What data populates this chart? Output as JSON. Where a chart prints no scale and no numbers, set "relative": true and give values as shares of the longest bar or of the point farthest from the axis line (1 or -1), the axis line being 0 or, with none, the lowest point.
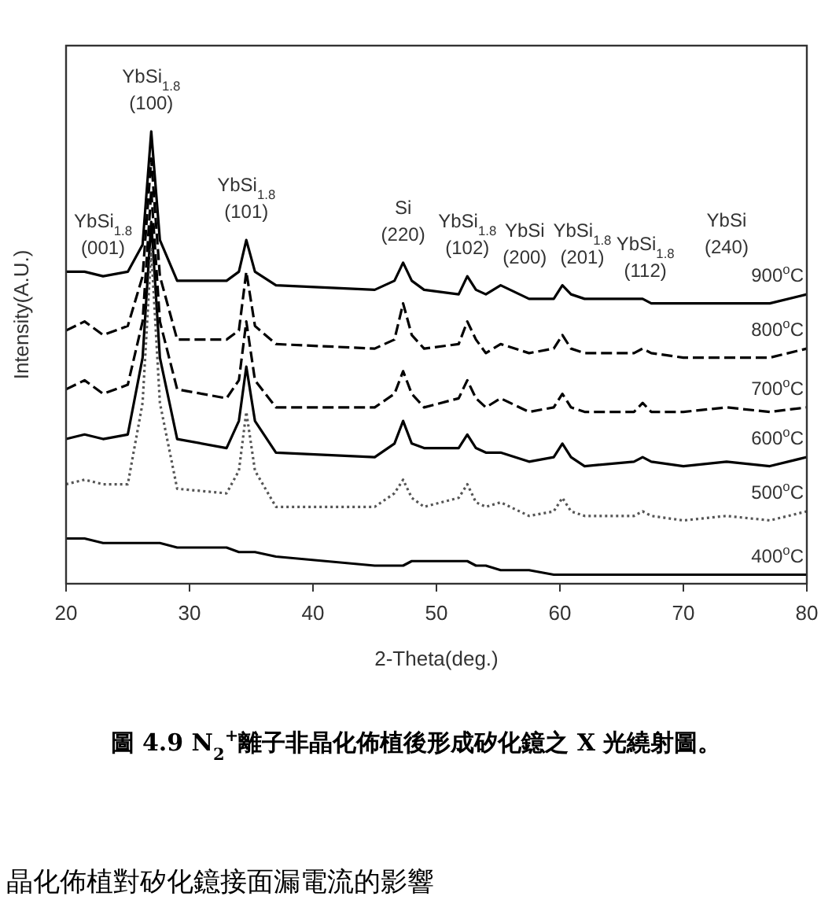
{
  "chart_data": {
    "type": "line",
    "relative": true,
    "xlabel": "2-Theta(deg.)",
    "ylabel": "Intensity(A.U.)",
    "xlim": [
      20,
      80
    ],
    "xticks": [
      20,
      30,
      40,
      50,
      60,
      70,
      80
    ],
    "grid": false,
    "marker": "none",
    "x": [
      20,
      21.5,
      23,
      25,
      26.2,
      26.9,
      27.6,
      29,
      33,
      34,
      34.6,
      35.3,
      37,
      45,
      46.6,
      47.3,
      48,
      49,
      51.8,
      52.5,
      53.2,
      54,
      55.2,
      57.5,
      59.5,
      60.2,
      60.9,
      62,
      66,
      66.7,
      67.4,
      70,
      73.5,
      77,
      80
    ],
    "series": [
      {
        "name": "900$^{o}$C",
        "color": "#000000",
        "line_style": "solid",
        "values": [
          0.69,
          0.69,
          0.68,
          0.69,
          0.75,
          1.0,
          0.76,
          0.67,
          0.67,
          0.69,
          0.76,
          0.69,
          0.66,
          0.65,
          0.67,
          0.71,
          0.67,
          0.65,
          0.64,
          0.68,
          0.65,
          0.64,
          0.66,
          0.63,
          0.63,
          0.66,
          0.64,
          0.63,
          0.63,
          0.63,
          0.62,
          0.62,
          0.62,
          0.62,
          0.64
        ]
      },
      {
        "name": "800$^{o}$C",
        "color": "#000000",
        "line_style": "dashed",
        "values": [
          0.56,
          0.58,
          0.55,
          0.57,
          0.68,
          0.94,
          0.68,
          0.54,
          0.54,
          0.56,
          0.69,
          0.57,
          0.53,
          0.52,
          0.54,
          0.62,
          0.55,
          0.52,
          0.53,
          0.58,
          0.54,
          0.51,
          0.53,
          0.51,
          0.52,
          0.55,
          0.52,
          0.51,
          0.51,
          0.52,
          0.51,
          0.5,
          0.5,
          0.5,
          0.52
        ]
      },
      {
        "name": "700$^{o}$C",
        "color": "#000000",
        "line_style": "dashed",
        "values": [
          0.43,
          0.45,
          0.42,
          0.44,
          0.58,
          0.87,
          0.58,
          0.43,
          0.41,
          0.45,
          0.58,
          0.45,
          0.39,
          0.39,
          0.42,
          0.47,
          0.42,
          0.39,
          0.41,
          0.45,
          0.41,
          0.39,
          0.41,
          0.38,
          0.39,
          0.42,
          0.39,
          0.38,
          0.38,
          0.4,
          0.38,
          0.38,
          0.39,
          0.38,
          0.39
        ]
      },
      {
        "name": "600$^{o}$C",
        "color": "#000000",
        "line_style": "solid",
        "values": [
          0.32,
          0.33,
          0.32,
          0.33,
          0.5,
          0.8,
          0.5,
          0.32,
          0.3,
          0.36,
          0.48,
          0.36,
          0.29,
          0.28,
          0.31,
          0.36,
          0.31,
          0.3,
          0.3,
          0.33,
          0.3,
          0.29,
          0.29,
          0.27,
          0.28,
          0.31,
          0.28,
          0.26,
          0.27,
          0.28,
          0.27,
          0.26,
          0.27,
          0.26,
          0.28
        ]
      },
      {
        "name": "500$^{o}$C",
        "color": "#555555",
        "line_style": "dotted",
        "values": [
          0.22,
          0.23,
          0.22,
          0.22,
          0.4,
          0.74,
          0.4,
          0.21,
          0.2,
          0.25,
          0.38,
          0.25,
          0.17,
          0.17,
          0.2,
          0.23,
          0.19,
          0.17,
          0.19,
          0.22,
          0.18,
          0.17,
          0.18,
          0.15,
          0.16,
          0.19,
          0.16,
          0.15,
          0.15,
          0.16,
          0.15,
          0.14,
          0.15,
          0.14,
          0.16
        ]
      },
      {
        "name": "400$^{o}$C",
        "color": "#000000",
        "line_style": "solid",
        "values": [
          0.1,
          0.1,
          0.09,
          0.09,
          0.09,
          0.09,
          0.09,
          0.08,
          0.08,
          0.07,
          0.07,
          0.07,
          0.06,
          0.04,
          0.04,
          0.04,
          0.05,
          0.05,
          0.05,
          0.05,
          0.04,
          0.04,
          0.03,
          0.03,
          0.02,
          0.02,
          0.02,
          0.02,
          0.02,
          0.02,
          0.02,
          0.02,
          0.02,
          0.02,
          0.02
        ]
      }
    ],
    "annotations": [
      {
        "text": "YbSi$_{1.8}$\n(001)",
        "x": 23,
        "y": 0.68
      },
      {
        "text": "YbSi$_{1.8}$\n(100)",
        "x": 26.9,
        "y": 1.0
      },
      {
        "text": "YbSi$_{1.8}$\n(101)",
        "x": 34.6,
        "y": 0.76
      },
      {
        "text": "Si\n(220)",
        "x": 47.3,
        "y": 0.71
      },
      {
        "text": "YbSi$_{1.8}$\n(102)",
        "x": 52.5,
        "y": 0.68
      },
      {
        "text": "YbSi\n(200)",
        "x": 55.2,
        "y": 0.66
      },
      {
        "text": "YbSi$_{1.8}$\n(201)",
        "x": 60.2,
        "y": 0.66
      },
      {
        "text": "YbSi$_{1.8}$\n(112)",
        "x": 66.7,
        "y": 0.63
      },
      {
        "text": "YbSi\n(240)",
        "x": 73.5,
        "y": 0.62
      },
      "圖 4.9 N$_{2}$$^{+}$離子非晶化佈植後形成矽化鐿之 X 光繞射圖。",
      "晶化佈植對矽化鐿接面漏電流的影響"
    ]
  }
}
